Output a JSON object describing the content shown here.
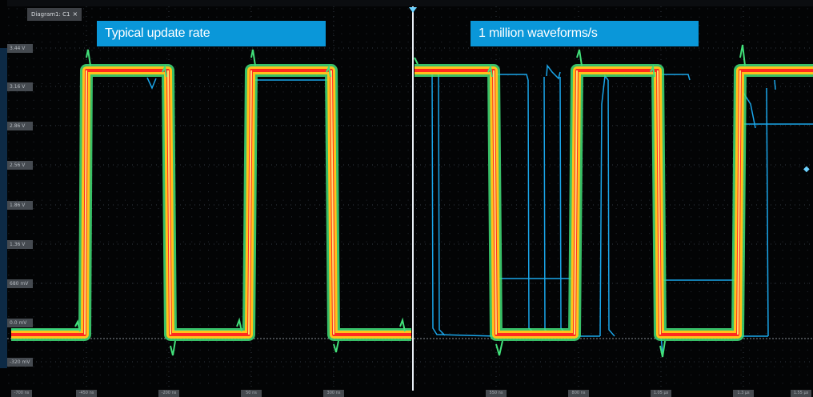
{
  "diagram_tab": {
    "label": "Diagram1: C1",
    "close_glyph": "×"
  },
  "banners": {
    "left": "Typical update rate",
    "right": "1 million waveforms/s"
  },
  "y_axis_labels": [
    "3.44 V",
    "3.16 V",
    "2.86 V",
    "2.56 V",
    "1.86 V",
    "1.36 V",
    "680 mV",
    "0.0 mV",
    "-320 mV"
  ],
  "x_axis_labels": [
    "-700 ns",
    "-450 ns",
    "-200 ns",
    "50 ns",
    "300 ns",
    "550 ns",
    "800 ns",
    "1.05 µs",
    "1.3 µs",
    "1.55 µs"
  ],
  "icons": {
    "close": "close-icon",
    "trigger": "trigger-position-marker-icon",
    "level": "trigger-level-marker-icon"
  },
  "colors": {
    "background": "#030405",
    "grid_dot": "#2a3038",
    "banner": "#0a97d9",
    "waveform_core": "#ff2a1f",
    "waveform_mid": "#ffc21a",
    "waveform_outer": "#42e07a",
    "waveform_rare": "#1aa6ea",
    "divider": "#e8eef4"
  }
}
